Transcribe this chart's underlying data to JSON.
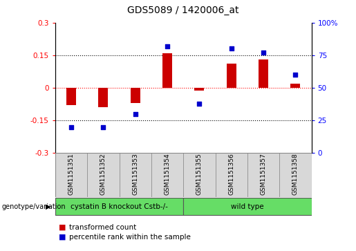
{
  "title": "GDS5089 / 1420006_at",
  "samples": [
    "GSM1151351",
    "GSM1151352",
    "GSM1151353",
    "GSM1151354",
    "GSM1151355",
    "GSM1151356",
    "GSM1151357",
    "GSM1151358"
  ],
  "transformed_count": [
    -0.08,
    -0.09,
    -0.07,
    0.16,
    -0.012,
    0.11,
    0.13,
    0.02
  ],
  "percentile_rank": [
    20,
    20,
    30,
    82,
    38,
    80,
    77,
    60
  ],
  "bar_color": "#cc0000",
  "dot_color": "#0000cc",
  "ylim_left": [
    -0.3,
    0.3
  ],
  "ylim_right": [
    0,
    100
  ],
  "yticks_left": [
    -0.3,
    -0.15,
    0.0,
    0.15,
    0.3
  ],
  "yticks_right": [
    0,
    25,
    50,
    75,
    100
  ],
  "ytick_labels_left": [
    "-0.3",
    "-0.15",
    "0",
    "0.15",
    "0.3"
  ],
  "ytick_labels_right": [
    "0",
    "25",
    "50",
    "75",
    "100%"
  ],
  "hlines": [
    0.15,
    0.0,
    -0.15
  ],
  "hline_colors": [
    "black",
    "red",
    "black"
  ],
  "hline_styles": [
    "dotted",
    "dotted",
    "dotted"
  ],
  "group1_label": "cystatin B knockout Cstb-/-",
  "group2_label": "wild type",
  "group1_count": 4,
  "group2_count": 4,
  "group_color": "#66dd66",
  "group_row_label": "genotype/variation",
  "legend_bar_label": "transformed count",
  "legend_dot_label": "percentile rank within the sample",
  "bg_color": "#d8d8d8",
  "plot_bg_color": "#ffffff",
  "title_fontsize": 10,
  "tick_fontsize": 7.5,
  "label_fontsize": 8
}
